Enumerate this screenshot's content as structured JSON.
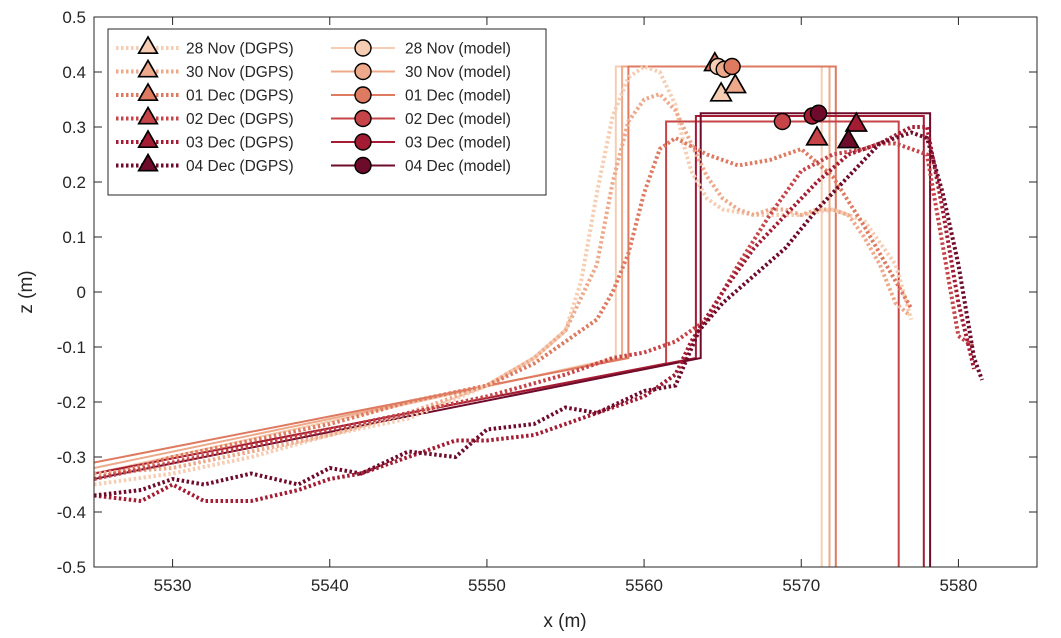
{
  "chart_data": {
    "type": "line",
    "xlabel": "x (m)",
    "ylabel": "z (m)",
    "xlim": [
      5525,
      5585
    ],
    "ylim": [
      -0.5,
      0.5
    ],
    "xticks": [
      5530,
      5540,
      5550,
      5560,
      5570,
      5580
    ],
    "yticks": [
      -0.5,
      -0.4,
      -0.3,
      -0.2,
      -0.1,
      0,
      0.1,
      0.2,
      0.3,
      0.4,
      0.5
    ],
    "xtick_labels": [
      "5530",
      "5540",
      "5550",
      "5560",
      "5570",
      "5580"
    ],
    "ytick_labels": [
      "-0.5",
      "-0.4",
      "-0.3",
      "-0.2",
      "-0.1",
      "0",
      "0.1",
      "0.2",
      "0.3",
      "0.4",
      "0.5"
    ],
    "grid": false,
    "legend_position": "top-left",
    "colors": [
      "#f6cdb2",
      "#eda98a",
      "#de7a60",
      "#c64448",
      "#a41c34",
      "#6e0b2a"
    ],
    "dgps_series": [
      {
        "name": "28 Nov (DGPS)",
        "color": "#f6cdb2",
        "x": [
          5525,
          5530,
          5535,
          5540,
          5545,
          5550,
          5553,
          5555,
          5556,
          5557,
          5558,
          5559,
          5560,
          5561,
          5562,
          5562.5,
          5563,
          5564,
          5565,
          5567,
          5570,
          5572,
          5574,
          5576,
          5577
        ],
        "y": [
          -0.35,
          -0.33,
          -0.3,
          -0.26,
          -0.23,
          -0.17,
          -0.12,
          -0.07,
          0.02,
          0.18,
          0.32,
          0.39,
          0.41,
          0.4,
          0.34,
          0.27,
          0.22,
          0.17,
          0.15,
          0.14,
          0.14,
          0.15,
          0.13,
          0.05,
          -0.05
        ]
      },
      {
        "name": "30 Nov (DGPS)",
        "color": "#eda98a",
        "x": [
          5525,
          5530,
          5535,
          5540,
          5545,
          5550,
          5553,
          5555,
          5557,
          5558,
          5559,
          5560,
          5561,
          5562,
          5563,
          5564,
          5565,
          5566,
          5567,
          5568,
          5569,
          5570,
          5571,
          5572,
          5573,
          5574,
          5575,
          5576,
          5576.8
        ],
        "y": [
          -0.33,
          -0.32,
          -0.29,
          -0.26,
          -0.22,
          -0.17,
          -0.12,
          -0.07,
          0.05,
          0.2,
          0.31,
          0.35,
          0.36,
          0.33,
          0.27,
          0.21,
          0.17,
          0.15,
          0.14,
          0.15,
          0.15,
          0.14,
          0.15,
          0.15,
          0.14,
          0.1,
          0.05,
          -0.02,
          -0.04
        ]
      },
      {
        "name": "01 Dec (DGPS)",
        "color": "#de7a60",
        "x": [
          5525,
          5530,
          5535,
          5540,
          5545,
          5550,
          5553,
          5555,
          5557,
          5558,
          5559,
          5560,
          5561,
          5562,
          5564,
          5566,
          5568,
          5570,
          5572,
          5574,
          5576,
          5577
        ],
        "y": [
          -0.34,
          -0.3,
          -0.27,
          -0.24,
          -0.2,
          -0.17,
          -0.13,
          -0.09,
          -0.05,
          0.0,
          0.07,
          0.18,
          0.26,
          0.28,
          0.25,
          0.23,
          0.24,
          0.26,
          0.21,
          0.12,
          0.02,
          -0.03
        ]
      },
      {
        "name": "02 Dec (DGPS)",
        "color": "#c64448",
        "x": [
          5525,
          5530,
          5535,
          5540,
          5545,
          5550,
          5555,
          5558,
          5560,
          5562,
          5564,
          5566,
          5568,
          5570,
          5572,
          5574,
          5575,
          5576,
          5578,
          5580,
          5581
        ],
        "y": [
          -0.34,
          -0.31,
          -0.28,
          -0.25,
          -0.22,
          -0.19,
          -0.15,
          -0.12,
          -0.11,
          -0.09,
          -0.05,
          0.05,
          0.14,
          0.22,
          0.25,
          0.26,
          0.27,
          0.27,
          0.25,
          -0.08,
          -0.1
        ]
      },
      {
        "name": "03 Dec (DGPS)",
        "color": "#a41c34",
        "x": [
          5525,
          5528,
          5530,
          5532,
          5535,
          5538,
          5540,
          5542,
          5545,
          5548,
          5550,
          5553,
          5555,
          5557,
          5560,
          5562,
          5563,
          5565,
          5567,
          5569,
          5571,
          5573,
          5575,
          5577,
          5578,
          5579,
          5580,
          5581
        ],
        "y": [
          -0.37,
          -0.38,
          -0.35,
          -0.38,
          -0.38,
          -0.36,
          -0.34,
          -0.33,
          -0.3,
          -0.27,
          -0.27,
          -0.26,
          -0.24,
          -0.22,
          -0.19,
          -0.15,
          -0.09,
          0.0,
          0.08,
          0.14,
          0.2,
          0.25,
          0.27,
          0.3,
          0.3,
          0.15,
          -0.02,
          -0.14
        ]
      },
      {
        "name": "04 Dec (DGPS)",
        "color": "#6e0b2a",
        "x": [
          5525,
          5528,
          5530,
          5532,
          5535,
          5538,
          5540,
          5542,
          5545,
          5548,
          5550,
          5553,
          5555,
          5557,
          5560,
          5562,
          5563.5,
          5565,
          5567,
          5569,
          5571,
          5573,
          5575,
          5577,
          5578,
          5579,
          5580,
          5581,
          5581.5
        ],
        "y": [
          -0.37,
          -0.36,
          -0.34,
          -0.35,
          -0.33,
          -0.35,
          -0.32,
          -0.33,
          -0.29,
          -0.3,
          -0.25,
          -0.24,
          -0.21,
          -0.22,
          -0.18,
          -0.17,
          -0.07,
          -0.02,
          0.03,
          0.08,
          0.15,
          0.21,
          0.27,
          0.29,
          0.28,
          0.18,
          0.05,
          -0.12,
          -0.16
        ]
      }
    ],
    "model_series": [
      {
        "name": "28 Nov (model)",
        "color": "#f6cdb2",
        "x": [
          5525,
          5558.2,
          5558.2,
          5571.3,
          5571.3
        ],
        "y": [
          -0.33,
          -0.12,
          0.41,
          0.41,
          -0.5
        ]
      },
      {
        "name": "30 Nov (model)",
        "color": "#eda98a",
        "x": [
          5525,
          5558.6,
          5558.6,
          5571.8,
          5571.8
        ],
        "y": [
          -0.32,
          -0.12,
          0.41,
          0.41,
          -0.5
        ]
      },
      {
        "name": "01 Dec (model)",
        "color": "#de7a60",
        "x": [
          5525,
          5559.0,
          5559.0,
          5572.2,
          5572.2
        ],
        "y": [
          -0.31,
          -0.12,
          0.41,
          0.41,
          -0.5
        ]
      },
      {
        "name": "02 Dec (model)",
        "color": "#c64448",
        "x": [
          5525,
          5561.4,
          5561.4,
          5576.2,
          5576.2
        ],
        "y": [
          -0.33,
          -0.13,
          0.31,
          0.31,
          -0.5
        ]
      },
      {
        "name": "03 Dec (model)",
        "color": "#a41c34",
        "x": [
          5525,
          5563.3,
          5563.3,
          5577.8,
          5577.8
        ],
        "y": [
          -0.33,
          -0.12,
          0.32,
          0.32,
          -0.5
        ]
      },
      {
        "name": "04 Dec (model)",
        "color": "#6e0b2a",
        "x": [
          5525,
          5563.6,
          5563.6,
          5578.2,
          5578.2
        ],
        "y": [
          -0.34,
          -0.12,
          0.325,
          0.325,
          -0.5
        ]
      }
    ],
    "dgps_markers": [
      {
        "x": 5564.9,
        "y": 0.36,
        "color": "#f6cdb2"
      },
      {
        "x": 5565.8,
        "y": 0.375,
        "color": "#eda98a"
      },
      {
        "x": 5564.5,
        "y": 0.415,
        "color": "#de7a60"
      },
      {
        "x": 5571.0,
        "y": 0.28,
        "color": "#c64448"
      },
      {
        "x": 5573.5,
        "y": 0.305,
        "color": "#a41c34"
      },
      {
        "x": 5573.0,
        "y": 0.275,
        "color": "#6e0b2a"
      }
    ],
    "model_markers": [
      {
        "x": 5564.7,
        "y": 0.41,
        "color": "#f6cdb2"
      },
      {
        "x": 5565.1,
        "y": 0.405,
        "color": "#eda98a"
      },
      {
        "x": 5565.6,
        "y": 0.41,
        "color": "#de7a60"
      },
      {
        "x": 5568.8,
        "y": 0.31,
        "color": "#c64448"
      },
      {
        "x": 5570.7,
        "y": 0.32,
        "color": "#a41c34"
      },
      {
        "x": 5571.1,
        "y": 0.325,
        "color": "#6e0b2a"
      }
    ]
  }
}
